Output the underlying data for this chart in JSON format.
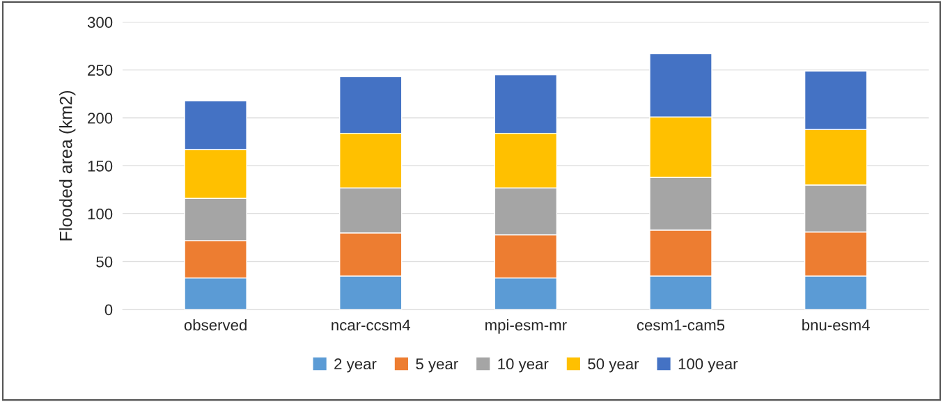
{
  "chart_data": {
    "type": "bar",
    "stacked": true,
    "ylabel": "Flooded area (km2)",
    "categories": [
      "observed",
      "ncar-ccsm4",
      "mpi-esm-mr",
      "cesm1-cam5",
      "bnu-esm4"
    ],
    "series": [
      {
        "name": "2 year",
        "color": "#5b9bd5",
        "values": [
          33,
          35,
          33,
          35,
          35
        ]
      },
      {
        "name": "5 year",
        "color": "#ed7d31",
        "values": [
          39,
          45,
          45,
          48,
          46
        ]
      },
      {
        "name": "10 year",
        "color": "#a5a5a5",
        "values": [
          44,
          47,
          49,
          55,
          49
        ]
      },
      {
        "name": "50 year",
        "color": "#ffc000",
        "values": [
          51,
          57,
          57,
          63,
          58
        ]
      },
      {
        "name": "100 year",
        "color": "#4472c4",
        "values": [
          51,
          59,
          61,
          66,
          61
        ]
      }
    ],
    "ylim": [
      0,
      300
    ],
    "yticks": [
      0,
      50,
      100,
      150,
      200,
      250,
      300
    ],
    "grid": "y",
    "legend": "bottom"
  }
}
